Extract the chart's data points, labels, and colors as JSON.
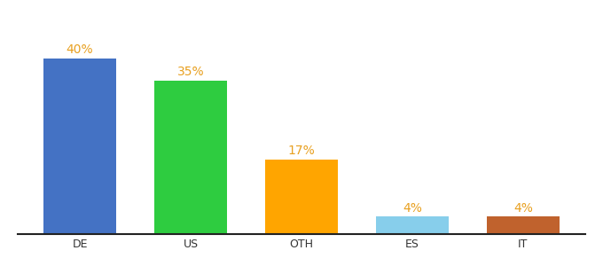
{
  "categories": [
    "DE",
    "US",
    "OTH",
    "ES",
    "IT"
  ],
  "values": [
    40,
    35,
    17,
    4,
    4
  ],
  "bar_colors": [
    "#4472C4",
    "#2ECC40",
    "#FFA500",
    "#87CEEB",
    "#C0622D"
  ],
  "label_color": "#E8A020",
  "labels": [
    "40%",
    "35%",
    "17%",
    "4%",
    "4%"
  ],
  "label_fontsize": 10,
  "tick_fontsize": 9,
  "ylim": [
    0,
    46
  ],
  "bar_width": 0.65,
  "background_color": "#ffffff"
}
